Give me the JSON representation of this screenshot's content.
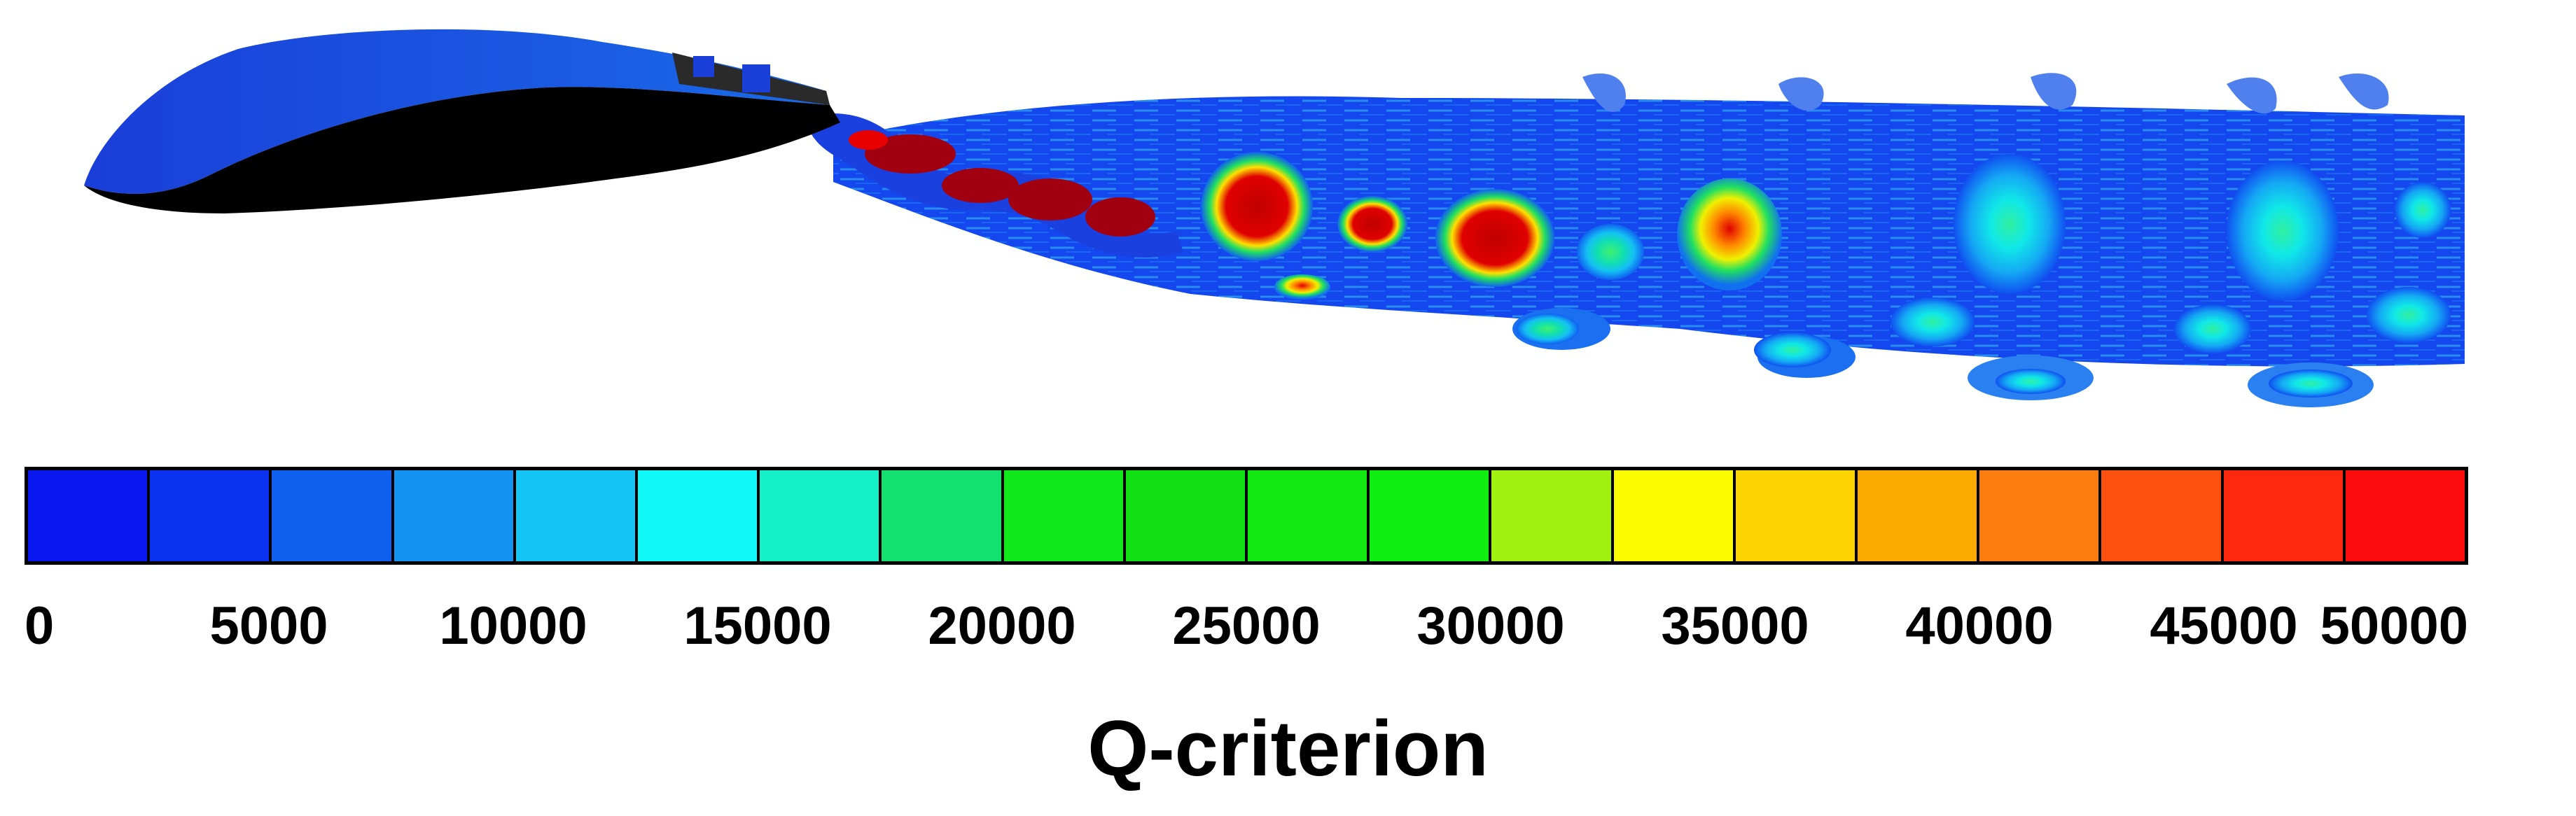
{
  "figure": {
    "colorbar_title": "Q-criterion",
    "colorbar": {
      "min": 0,
      "max": 50000,
      "colors": [
        "#0a18f0",
        "#0a32f0",
        "#1060f0",
        "#1494f2",
        "#14c4f4",
        "#10f8f8",
        "#14f0c8",
        "#14e070",
        "#10e81c",
        "#10e014",
        "#10e810",
        "#10ee10",
        "#a0f010",
        "#fcfc00",
        "#fcd400",
        "#fcaa00",
        "#fc7c10",
        "#fc5010",
        "#fc2810",
        "#fc0c0c"
      ],
      "tick_labels": [
        "0",
        "5000",
        "10000",
        "15000",
        "20000",
        "25000",
        "30000",
        "35000",
        "40000",
        "45000",
        "50000"
      ]
    }
  }
}
